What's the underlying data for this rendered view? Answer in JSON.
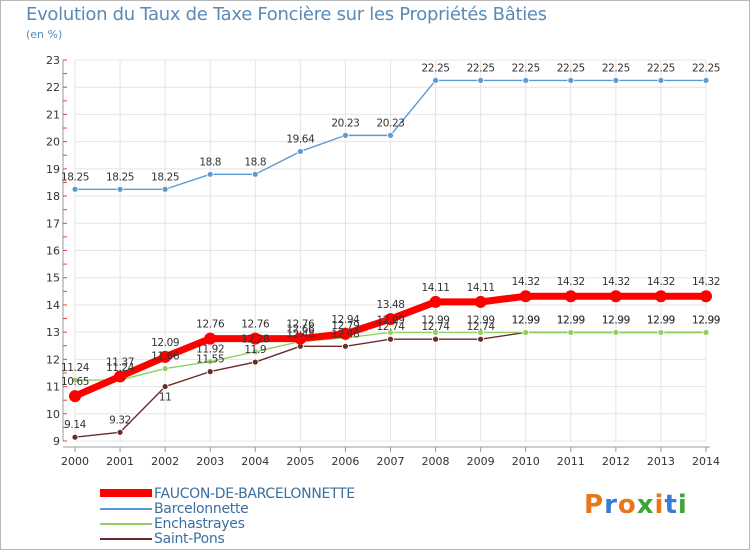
{
  "title": "Evolution du Taux de Taxe Foncière sur les Propriétés Bâties",
  "subtitle": "(en %)",
  "logo": {
    "text": "Proxiti",
    "colors": [
      "#e8761a",
      "#3a7bd5",
      "#e8761a",
      "#3aa836",
      "#e8761a",
      "#3a7bd5",
      "#3aa836"
    ]
  },
  "chart_data": {
    "type": "line",
    "title": "Evolution du Taux de Taxe Foncière sur les Propriétés Bâties",
    "ylabel": "(en %)",
    "xlabel": "",
    "x": [
      "2000",
      "2001",
      "2002",
      "2003",
      "2004",
      "2005",
      "2006",
      "2007",
      "2008",
      "2009",
      "2010",
      "2011",
      "2012",
      "2013",
      "2014"
    ],
    "yticks": [
      "9",
      "10",
      "11",
      "12",
      "13",
      "14",
      "15",
      "16",
      "17",
      "18",
      "19",
      "20",
      "21",
      "22",
      "23"
    ],
    "ylim": [
      9,
      23
    ],
    "legend_position": "bottom-left",
    "series": [
      {
        "name": "Saint-Pons",
        "color": "#6b2b2b",
        "weight": "thin",
        "values": [
          9.14,
          9.32,
          11.0,
          11.55,
          11.9,
          12.48,
          12.48,
          12.74,
          12.74,
          12.74,
          12.99,
          12.99,
          12.99,
          12.99,
          12.99
        ],
        "labels": [
          "9.14",
          "9.32",
          "11",
          "11.55",
          "11.9",
          "12.48",
          "12.48",
          "12.74",
          "12.74",
          "12.74",
          "12.99",
          "12.99",
          "12.99",
          "12.99",
          "12.99"
        ]
      },
      {
        "name": "Enchastrayes",
        "color": "#90d060",
        "weight": "thin",
        "values": [
          11.24,
          11.24,
          11.66,
          11.92,
          12.28,
          12.66,
          12.79,
          12.99,
          12.99,
          12.99,
          12.99,
          12.99,
          12.99,
          12.99,
          12.99
        ],
        "labels": [
          "11.24",
          "11.24",
          "11.66",
          "11.92",
          "12.28",
          "12.66",
          "12.79",
          "12.99",
          "12.99",
          "12.99",
          "12.99",
          "12.99",
          "12.99",
          "12.99",
          "12.99"
        ]
      },
      {
        "name": "Barcelonnette",
        "color": "#5b9bd5",
        "weight": "thin",
        "values": [
          18.25,
          18.25,
          18.25,
          18.8,
          18.8,
          19.64,
          20.23,
          20.23,
          22.25,
          22.25,
          22.25,
          22.25,
          22.25,
          22.25,
          22.25
        ],
        "labels": [
          "18.25",
          "18.25",
          "18.25",
          "18.8",
          "18.8",
          "19.64",
          "20.23",
          "20.23",
          "22.25",
          "22.25",
          "22.25",
          "22.25",
          "22.25",
          "22.25",
          "22.25"
        ]
      },
      {
        "name": "FAUCON-DE-BARCELONNETTE",
        "color": "#ff0000",
        "weight": "thick",
        "values": [
          10.65,
          11.37,
          12.09,
          12.76,
          12.76,
          12.76,
          12.94,
          13.48,
          14.11,
          14.11,
          14.32,
          14.32,
          14.32,
          14.32,
          14.32
        ],
        "labels": [
          "10.65",
          "11.37",
          "12.09",
          "12.76",
          "12.76",
          "12.76",
          "12.94",
          "13.48",
          "14.11",
          "14.11",
          "14.32",
          "14.32",
          "14.32",
          "14.32",
          "14.32"
        ]
      }
    ],
    "legend": [
      "FAUCON-DE-BARCELONNETTE",
      "Barcelonnette",
      "Enchastrayes",
      "Saint-Pons"
    ]
  }
}
